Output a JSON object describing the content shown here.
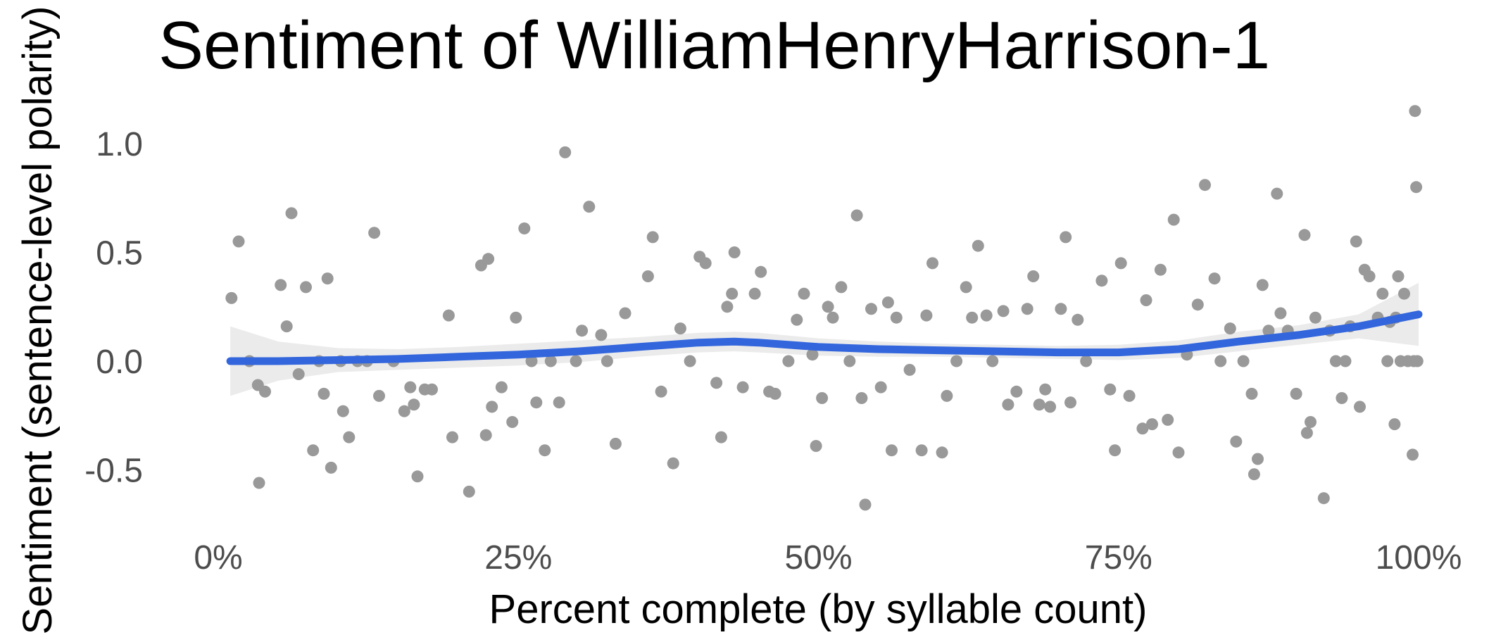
{
  "chart_data": {
    "type": "scatter",
    "title": "Sentiment of WilliamHenryHarrison-1",
    "xlabel": "Percent complete (by syllable count)",
    "ylabel": "Sentiment (sentence-level polarity)",
    "xlim": [
      0,
      100
    ],
    "ylim": [
      -0.65,
      1.15
    ],
    "x_ticks": [
      0,
      25,
      50,
      75,
      100
    ],
    "x_tick_labels": [
      "0%",
      "25%",
      "50%",
      "75%",
      "100%"
    ],
    "y_ticks": [
      -0.5,
      0.0,
      0.5,
      1.0
    ],
    "y_tick_labels": [
      "-0.5",
      "0.0",
      "0.5",
      "1.0"
    ],
    "grid": false,
    "legend": "none",
    "colors": {
      "points": "#999999",
      "smooth": "#3366dd",
      "band": "#e8e8e8"
    },
    "points": [
      {
        "x": 1.1,
        "y": 0.29
      },
      {
        "x": 1.7,
        "y": 0.55
      },
      {
        "x": 2.6,
        "y": 0.0
      },
      {
        "x": 3.3,
        "y": -0.11
      },
      {
        "x": 3.4,
        "y": -0.56
      },
      {
        "x": 3.9,
        "y": -0.14
      },
      {
        "x": 5.2,
        "y": 0.35
      },
      {
        "x": 5.7,
        "y": 0.16
      },
      {
        "x": 6.1,
        "y": 0.68
      },
      {
        "x": 6.7,
        "y": -0.06
      },
      {
        "x": 7.3,
        "y": 0.34
      },
      {
        "x": 7.9,
        "y": -0.41
      },
      {
        "x": 8.4,
        "y": 0.0
      },
      {
        "x": 8.8,
        "y": -0.15
      },
      {
        "x": 9.1,
        "y": 0.38
      },
      {
        "x": 9.4,
        "y": -0.49
      },
      {
        "x": 10.2,
        "y": 0.0
      },
      {
        "x": 10.4,
        "y": -0.23
      },
      {
        "x": 10.9,
        "y": -0.35
      },
      {
        "x": 11.6,
        "y": 0.0
      },
      {
        "x": 12.4,
        "y": 0.0
      },
      {
        "x": 13.0,
        "y": 0.59
      },
      {
        "x": 13.4,
        "y": -0.16
      },
      {
        "x": 14.6,
        "y": 0.0
      },
      {
        "x": 15.5,
        "y": -0.23
      },
      {
        "x": 16.0,
        "y": -0.12
      },
      {
        "x": 16.3,
        "y": -0.2
      },
      {
        "x": 16.6,
        "y": -0.53
      },
      {
        "x": 17.2,
        "y": -0.13
      },
      {
        "x": 17.8,
        "y": -0.13
      },
      {
        "x": 19.2,
        "y": 0.21
      },
      {
        "x": 19.5,
        "y": -0.35
      },
      {
        "x": 20.9,
        "y": -0.6
      },
      {
        "x": 21.9,
        "y": 0.44
      },
      {
        "x": 22.3,
        "y": -0.34
      },
      {
        "x": 22.5,
        "y": 0.47
      },
      {
        "x": 22.8,
        "y": -0.21
      },
      {
        "x": 23.6,
        "y": -0.12
      },
      {
        "x": 24.5,
        "y": -0.28
      },
      {
        "x": 24.8,
        "y": 0.2
      },
      {
        "x": 25.5,
        "y": 0.61
      },
      {
        "x": 26.1,
        "y": 0.0
      },
      {
        "x": 26.5,
        "y": -0.19
      },
      {
        "x": 27.2,
        "y": -0.41
      },
      {
        "x": 27.7,
        "y": 0.0
      },
      {
        "x": 28.4,
        "y": -0.19
      },
      {
        "x": 28.9,
        "y": 0.96
      },
      {
        "x": 29.8,
        "y": 0.0
      },
      {
        "x": 30.3,
        "y": 0.14
      },
      {
        "x": 30.9,
        "y": 0.71
      },
      {
        "x": 31.9,
        "y": 0.12
      },
      {
        "x": 32.4,
        "y": 0.0
      },
      {
        "x": 33.1,
        "y": -0.38
      },
      {
        "x": 33.9,
        "y": 0.22
      },
      {
        "x": 35.8,
        "y": 0.39
      },
      {
        "x": 36.2,
        "y": 0.57
      },
      {
        "x": 36.9,
        "y": -0.14
      },
      {
        "x": 37.9,
        "y": -0.47
      },
      {
        "x": 38.5,
        "y": 0.15
      },
      {
        "x": 39.3,
        "y": 0.0
      },
      {
        "x": 40.1,
        "y": 0.48
      },
      {
        "x": 40.6,
        "y": 0.45
      },
      {
        "x": 41.5,
        "y": -0.1
      },
      {
        "x": 41.9,
        "y": -0.35
      },
      {
        "x": 42.4,
        "y": 0.25
      },
      {
        "x": 42.8,
        "y": 0.31
      },
      {
        "x": 43.0,
        "y": 0.5
      },
      {
        "x": 43.7,
        "y": -0.12
      },
      {
        "x": 44.7,
        "y": 0.31
      },
      {
        "x": 45.2,
        "y": 0.41
      },
      {
        "x": 45.9,
        "y": -0.14
      },
      {
        "x": 46.4,
        "y": -0.15
      },
      {
        "x": 47.5,
        "y": 0.0
      },
      {
        "x": 48.2,
        "y": 0.19
      },
      {
        "x": 48.8,
        "y": 0.31
      },
      {
        "x": 49.5,
        "y": 0.03
      },
      {
        "x": 49.8,
        "y": -0.39
      },
      {
        "x": 50.3,
        "y": -0.17
      },
      {
        "x": 50.8,
        "y": 0.25
      },
      {
        "x": 51.2,
        "y": 0.2
      },
      {
        "x": 51.9,
        "y": 0.34
      },
      {
        "x": 52.6,
        "y": 0.0
      },
      {
        "x": 53.2,
        "y": 0.67
      },
      {
        "x": 53.6,
        "y": -0.17
      },
      {
        "x": 53.9,
        "y": -0.66
      },
      {
        "x": 54.4,
        "y": 0.24
      },
      {
        "x": 55.2,
        "y": -0.12
      },
      {
        "x": 55.8,
        "y": 0.27
      },
      {
        "x": 56.1,
        "y": -0.41
      },
      {
        "x": 56.5,
        "y": 0.2
      },
      {
        "x": 57.6,
        "y": -0.04
      },
      {
        "x": 58.6,
        "y": -0.41
      },
      {
        "x": 59.0,
        "y": 0.21
      },
      {
        "x": 59.5,
        "y": 0.45
      },
      {
        "x": 60.3,
        "y": -0.42
      },
      {
        "x": 60.7,
        "y": -0.16
      },
      {
        "x": 61.5,
        "y": 0.0
      },
      {
        "x": 62.3,
        "y": 0.34
      },
      {
        "x": 62.8,
        "y": 0.2
      },
      {
        "x": 63.3,
        "y": 0.53
      },
      {
        "x": 64.0,
        "y": 0.21
      },
      {
        "x": 64.5,
        "y": 0.0
      },
      {
        "x": 65.4,
        "y": 0.23
      },
      {
        "x": 65.8,
        "y": -0.2
      },
      {
        "x": 66.5,
        "y": -0.14
      },
      {
        "x": 67.4,
        "y": 0.24
      },
      {
        "x": 67.9,
        "y": 0.39
      },
      {
        "x": 68.4,
        "y": -0.2
      },
      {
        "x": 68.9,
        "y": -0.13
      },
      {
        "x": 69.3,
        "y": -0.21
      },
      {
        "x": 70.2,
        "y": 0.24
      },
      {
        "x": 70.6,
        "y": 0.57
      },
      {
        "x": 71.0,
        "y": -0.19
      },
      {
        "x": 71.6,
        "y": 0.19
      },
      {
        "x": 72.3,
        "y": 0.0
      },
      {
        "x": 73.6,
        "y": 0.37
      },
      {
        "x": 74.3,
        "y": -0.13
      },
      {
        "x": 74.7,
        "y": -0.41
      },
      {
        "x": 75.2,
        "y": 0.45
      },
      {
        "x": 75.9,
        "y": -0.16
      },
      {
        "x": 77.0,
        "y": -0.31
      },
      {
        "x": 77.3,
        "y": 0.28
      },
      {
        "x": 77.8,
        "y": -0.29
      },
      {
        "x": 78.5,
        "y": 0.42
      },
      {
        "x": 79.1,
        "y": -0.27
      },
      {
        "x": 79.6,
        "y": 0.65
      },
      {
        "x": 80.0,
        "y": -0.42
      },
      {
        "x": 80.7,
        "y": 0.03
      },
      {
        "x": 81.6,
        "y": 0.26
      },
      {
        "x": 82.2,
        "y": 0.81
      },
      {
        "x": 83.0,
        "y": 0.38
      },
      {
        "x": 83.5,
        "y": 0.0
      },
      {
        "x": 84.3,
        "y": 0.15
      },
      {
        "x": 84.8,
        "y": -0.37
      },
      {
        "x": 85.4,
        "y": 0.0
      },
      {
        "x": 86.1,
        "y": -0.15
      },
      {
        "x": 86.3,
        "y": -0.52
      },
      {
        "x": 86.6,
        "y": -0.45
      },
      {
        "x": 87.0,
        "y": 0.35
      },
      {
        "x": 87.5,
        "y": 0.14
      },
      {
        "x": 88.2,
        "y": 0.77
      },
      {
        "x": 88.5,
        "y": 0.22
      },
      {
        "x": 89.1,
        "y": 0.14
      },
      {
        "x": 89.8,
        "y": -0.15
      },
      {
        "x": 90.5,
        "y": 0.58
      },
      {
        "x": 90.7,
        "y": -0.33
      },
      {
        "x": 91.0,
        "y": -0.28
      },
      {
        "x": 91.4,
        "y": 0.2
      },
      {
        "x": 92.1,
        "y": -0.63
      },
      {
        "x": 92.6,
        "y": 0.14
      },
      {
        "x": 93.1,
        "y": 0.0
      },
      {
        "x": 93.6,
        "y": -0.17
      },
      {
        "x": 93.9,
        "y": 0.0
      },
      {
        "x": 94.3,
        "y": 0.16
      },
      {
        "x": 94.8,
        "y": 0.55
      },
      {
        "x": 95.1,
        "y": -0.21
      },
      {
        "x": 95.5,
        "y": 0.42
      },
      {
        "x": 95.9,
        "y": 0.39
      },
      {
        "x": 96.6,
        "y": 0.2
      },
      {
        "x": 97.0,
        "y": 0.31
      },
      {
        "x": 97.4,
        "y": 0.0
      },
      {
        "x": 97.6,
        "y": 0.18
      },
      {
        "x": 98.0,
        "y": -0.29
      },
      {
        "x": 98.1,
        "y": 0.2
      },
      {
        "x": 98.3,
        "y": 0.39
      },
      {
        "x": 98.5,
        "y": 0.0
      },
      {
        "x": 98.8,
        "y": 0.31
      },
      {
        "x": 99.1,
        "y": 0.0
      },
      {
        "x": 99.5,
        "y": -0.43
      },
      {
        "x": 99.6,
        "y": 0.0
      },
      {
        "x": 99.7,
        "y": 1.15
      },
      {
        "x": 99.8,
        "y": 0.8
      },
      {
        "x": 99.9,
        "y": 0.0
      }
    ],
    "smooth": {
      "x": [
        1,
        5,
        10,
        15,
        20,
        25,
        30,
        35,
        40,
        43,
        45,
        50,
        55,
        60,
        65,
        70,
        75,
        80,
        85,
        90,
        95,
        100
      ],
      "y": [
        0.0,
        0.0,
        0.005,
        0.01,
        0.02,
        0.03,
        0.045,
        0.065,
        0.085,
        0.09,
        0.085,
        0.065,
        0.055,
        0.05,
        0.045,
        0.04,
        0.04,
        0.055,
        0.09,
        0.12,
        0.16,
        0.215
      ],
      "lo": [
        -0.16,
        -0.09,
        -0.05,
        -0.04,
        -0.03,
        -0.02,
        -0.005,
        0.02,
        0.04,
        0.045,
        0.04,
        0.025,
        0.02,
        0.02,
        0.015,
        0.01,
        0.005,
        0.015,
        0.045,
        0.075,
        0.105,
        0.07
      ],
      "hi": [
        0.16,
        0.09,
        0.06,
        0.055,
        0.065,
        0.08,
        0.095,
        0.11,
        0.13,
        0.135,
        0.13,
        0.105,
        0.09,
        0.08,
        0.075,
        0.07,
        0.075,
        0.095,
        0.135,
        0.165,
        0.215,
        0.36
      ]
    }
  }
}
